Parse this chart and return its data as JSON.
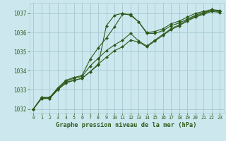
{
  "title": "Graphe pression niveau de la mer (hPa)",
  "background_color": "#cce8ee",
  "grid_color": "#aaccd4",
  "line_color": "#2d5a1b",
  "marker_color": "#2d5a1b",
  "xlim": [
    -0.5,
    23.5
  ],
  "ylim": [
    1031.8,
    1037.55
  ],
  "yticks": [
    1032,
    1033,
    1034,
    1035,
    1036,
    1037
  ],
  "xticks": [
    0,
    1,
    2,
    3,
    4,
    5,
    6,
    7,
    8,
    9,
    10,
    11,
    12,
    13,
    14,
    15,
    16,
    17,
    18,
    19,
    20,
    21,
    22,
    23
  ],
  "series": [
    [
      1032.0,
      1032.6,
      1032.6,
      1033.1,
      1033.5,
      1033.65,
      1033.75,
      1034.6,
      1035.2,
      1035.7,
      1036.3,
      1036.95,
      1036.95,
      1036.55,
      1036.0,
      1036.05,
      1036.2,
      1036.45,
      1036.6,
      1036.8,
      1037.0,
      1037.1,
      1037.2,
      1037.15
    ],
    [
      1032.0,
      1032.6,
      1032.6,
      1033.05,
      1033.45,
      1033.6,
      1033.7,
      1034.25,
      1034.65,
      1035.05,
      1035.35,
      1035.6,
      1035.95,
      1035.55,
      1035.3,
      1035.6,
      1035.9,
      1036.2,
      1036.4,
      1036.65,
      1036.85,
      1037.0,
      1037.15,
      1037.1
    ],
    [
      1032.0,
      1032.55,
      1032.55,
      1033.0,
      1033.4,
      1033.5,
      1033.6,
      1033.95,
      1034.35,
      1034.7,
      1035.05,
      1035.25,
      1035.6,
      1035.5,
      1035.25,
      1035.55,
      1035.85,
      1036.15,
      1036.35,
      1036.6,
      1036.8,
      1036.95,
      1037.1,
      1037.05
    ],
    [
      1032.0,
      1032.55,
      1032.55,
      1033.0,
      1033.35,
      1033.5,
      1033.6,
      1033.95,
      1034.3,
      1036.35,
      1036.9,
      1037.0,
      1036.9,
      1036.55,
      1035.95,
      1035.95,
      1036.1,
      1036.35,
      1036.5,
      1036.7,
      1036.9,
      1037.05,
      1037.15,
      1037.1
    ]
  ]
}
